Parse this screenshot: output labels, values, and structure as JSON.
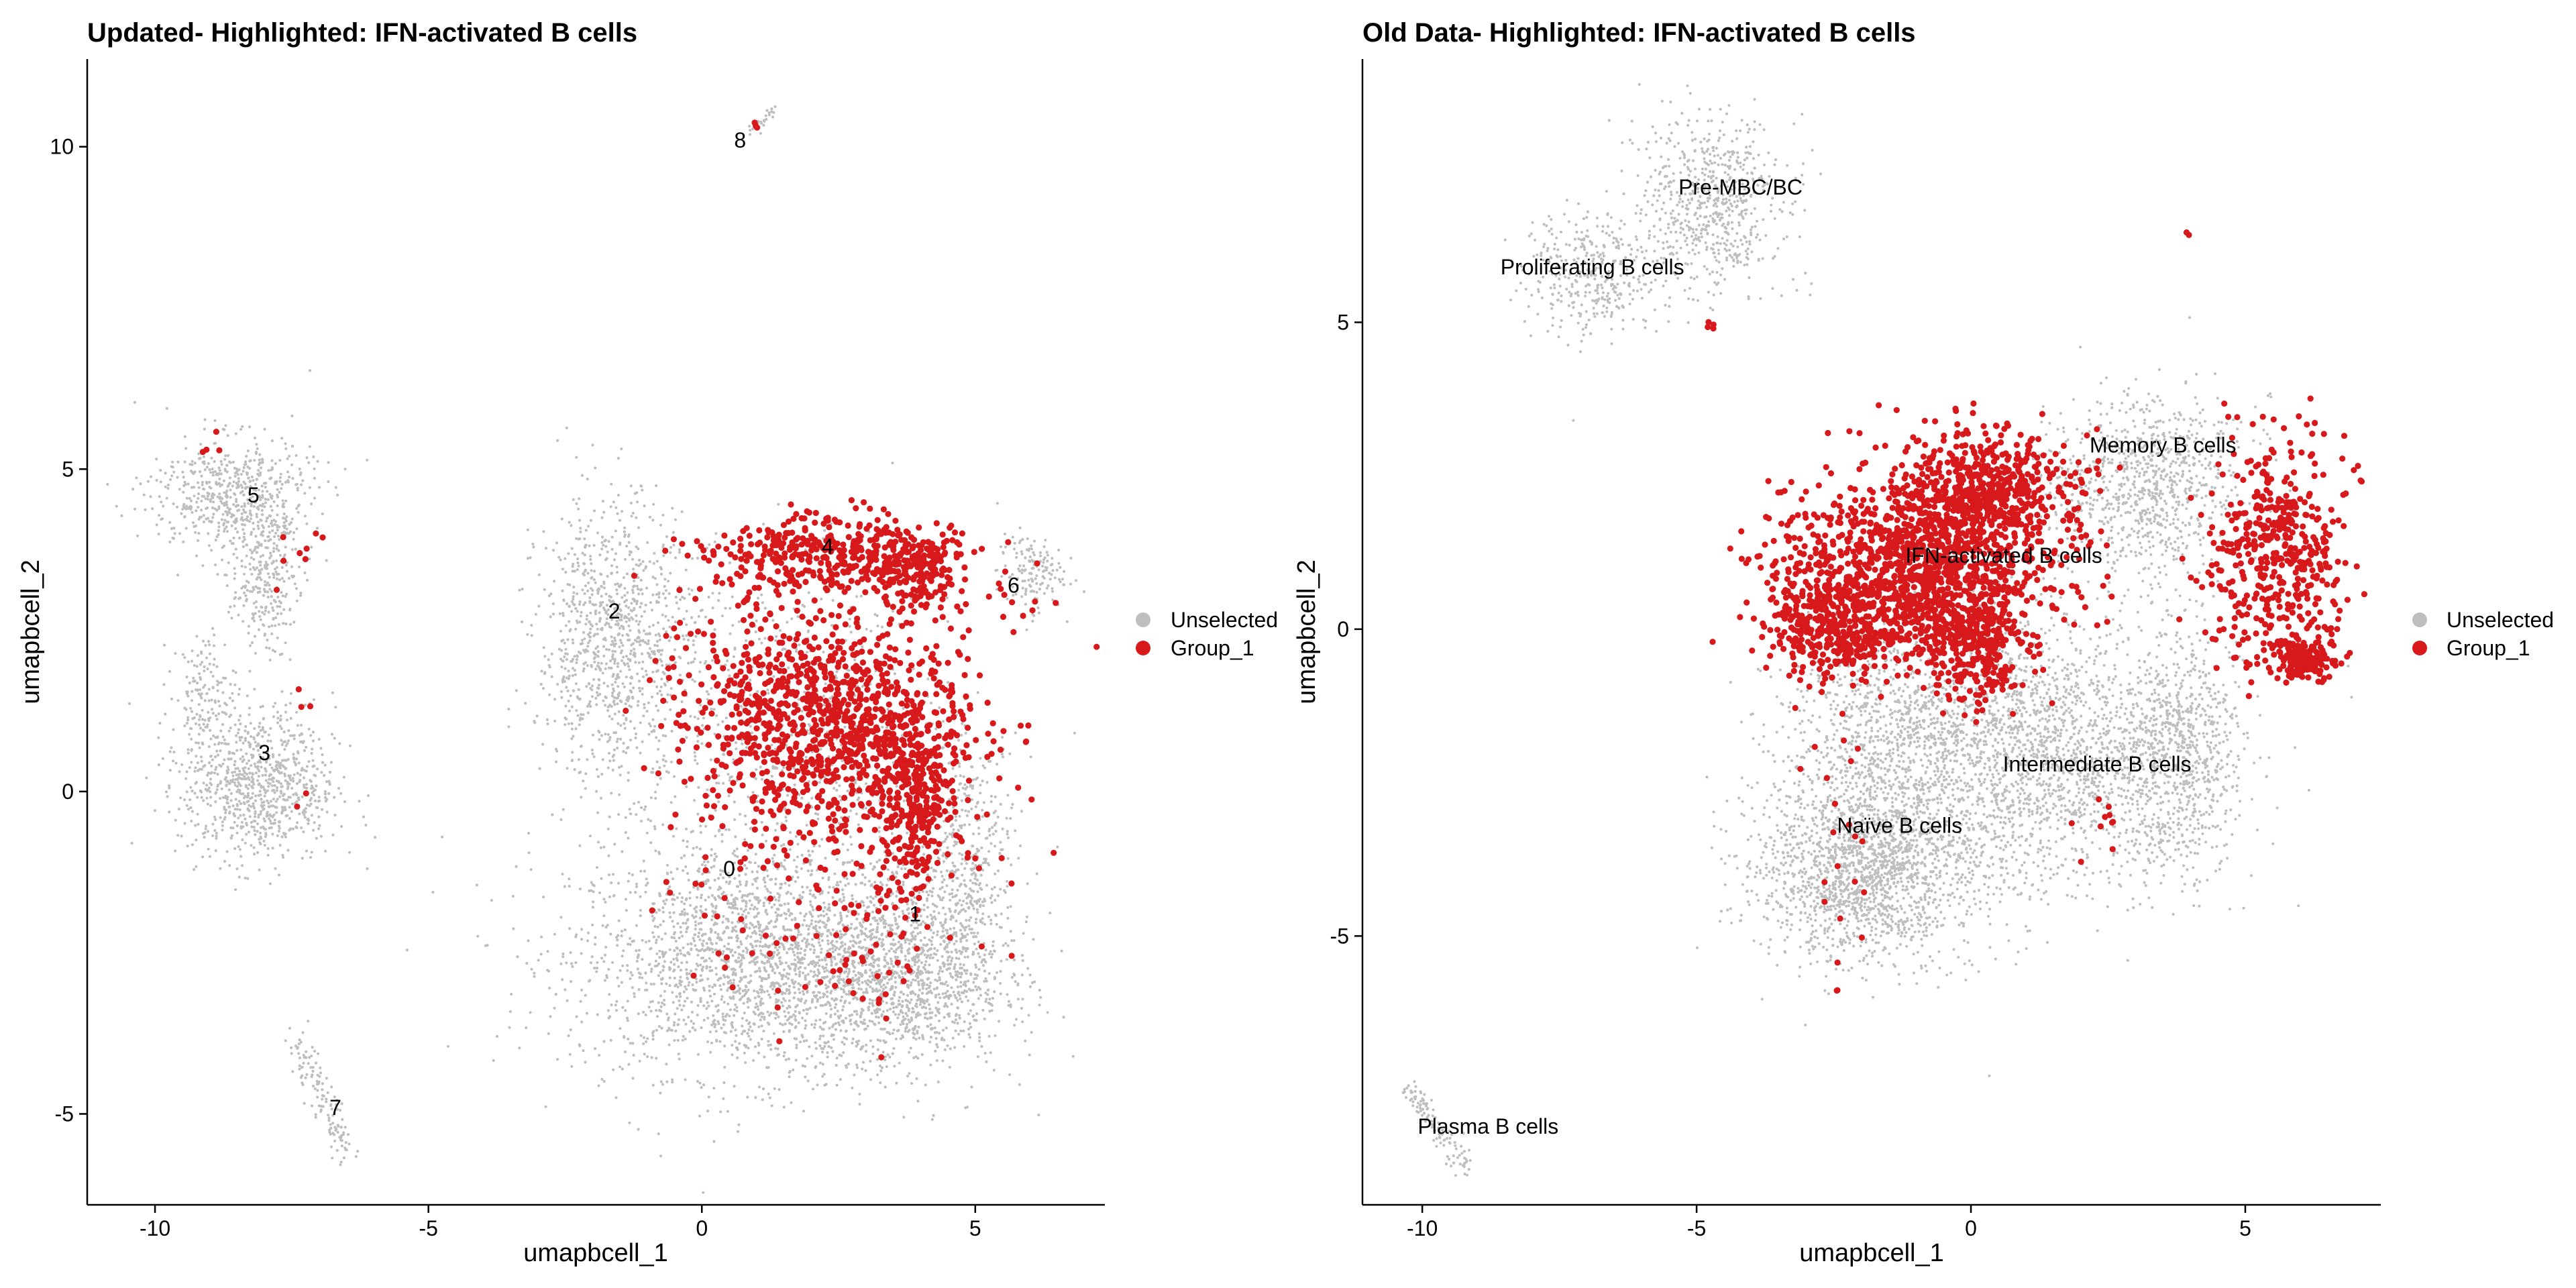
{
  "chart_data": [
    {
      "type": "scatter",
      "title": "Updated- Highlighted: IFN-activated B cells",
      "xlabel": "umapbcell_1",
      "ylabel": "umapbcell_2",
      "xlim": [
        -11.24,
        7.37
      ],
      "ylim": [
        -6.41,
        11.36
      ],
      "xticks": [
        -10,
        -5,
        0,
        5
      ],
      "yticks": [
        -5,
        0,
        5,
        10
      ],
      "xtick_labels": [
        "-10",
        "-5",
        "0",
        "5"
      ],
      "ytick_labels": [
        "-5",
        "0",
        "5",
        "10"
      ],
      "grid": false,
      "legend": {
        "placement": "right",
        "entries": [
          {
            "label": "Unselected",
            "color": "#bebebe"
          },
          {
            "label": "Group_1",
            "color": "#d7191c"
          }
        ]
      },
      "cluster_labels": [
        {
          "text": "0",
          "x": 0.5,
          "y": -1.2
        },
        {
          "text": "1",
          "x": 3.9,
          "y": -1.9
        },
        {
          "text": "2",
          "x": -1.6,
          "y": 2.8
        },
        {
          "text": "3",
          "x": -8.0,
          "y": 0.6
        },
        {
          "text": "4",
          "x": 2.3,
          "y": 3.8
        },
        {
          "text": "5",
          "x": -8.2,
          "y": 4.6
        },
        {
          "text": "6",
          "x": 5.7,
          "y": 3.2
        },
        {
          "text": "7",
          "x": -6.7,
          "y": -4.9
        },
        {
          "text": "8",
          "x": 0.7,
          "y": 10.1
        }
      ],
      "point_groups": [
        {
          "series": "Unselected",
          "shape": "gauss",
          "cx": 1.0,
          "cy": -2.6,
          "sx": 1.7,
          "sy": 0.9,
          "n": 2200
        },
        {
          "series": "Unselected",
          "shape": "gauss",
          "cx": 3.6,
          "cy": -2.9,
          "sx": 1.0,
          "sy": 0.7,
          "n": 1100
        },
        {
          "series": "Unselected",
          "shape": "gauss",
          "cx": -1.6,
          "cy": 2.3,
          "sx": 0.7,
          "sy": 1.1,
          "n": 1000
        },
        {
          "series": "Unselected",
          "shape": "gauss",
          "cx": 4.9,
          "cy": -1.2,
          "sx": 0.45,
          "sy": 1.0,
          "n": 450
        },
        {
          "series": "Unselected",
          "shape": "gauss",
          "cx": 1.8,
          "cy": 0.8,
          "sx": 1.4,
          "sy": 1.3,
          "n": 700
        },
        {
          "series": "Unselected",
          "shape": "gauss",
          "cx": -8.6,
          "cy": 4.6,
          "sx": 0.75,
          "sy": 0.45,
          "n": 550
        },
        {
          "series": "Unselected",
          "shape": "gauss",
          "cx": -8.0,
          "cy": 3.4,
          "sx": 0.3,
          "sy": 0.6,
          "n": 300
        },
        {
          "series": "Unselected",
          "shape": "gauss",
          "cx": -8.1,
          "cy": 0.1,
          "sx": 0.7,
          "sy": 0.6,
          "n": 850
        },
        {
          "series": "Unselected",
          "shape": "gauss",
          "cx": -9.1,
          "cy": 1.5,
          "sx": 0.3,
          "sy": 0.5,
          "n": 150
        },
        {
          "series": "Unselected",
          "shape": "gauss",
          "cx": 6.0,
          "cy": 3.4,
          "sx": 0.3,
          "sy": 0.3,
          "n": 150
        },
        {
          "series": "Unselected",
          "shape": "line",
          "x0": -7.4,
          "y0": -3.9,
          "x1": -6.5,
          "y1": -5.6,
          "w": 0.12,
          "n": 130
        },
        {
          "series": "Unselected",
          "shape": "line",
          "x0": 0.9,
          "y0": 10.2,
          "x1": 1.3,
          "y1": 10.6,
          "w": 0.05,
          "n": 25
        },
        {
          "series": "Group_1",
          "shape": "gauss",
          "cx": 2.3,
          "cy": 1.1,
          "sx": 1.3,
          "sy": 0.9,
          "n": 1100
        },
        {
          "series": "Group_1",
          "shape": "gauss",
          "cx": 2.4,
          "cy": 3.7,
          "sx": 1.2,
          "sy": 0.28,
          "n": 380
        },
        {
          "series": "Group_1",
          "shape": "gauss",
          "cx": 3.9,
          "cy": 3.4,
          "sx": 0.35,
          "sy": 0.3,
          "n": 150
        },
        {
          "series": "Group_1",
          "shape": "gauss",
          "cx": 3.9,
          "cy": -0.1,
          "sx": 0.4,
          "sy": 0.7,
          "n": 300
        },
        {
          "series": "Group_1",
          "shape": "gauss",
          "cx": 2.4,
          "cy": -2.0,
          "sx": 1.3,
          "sy": 0.8,
          "n": 110
        },
        {
          "series": "Group_1",
          "shape": "gauss",
          "cx": 5.7,
          "cy": 3.2,
          "sx": 0.3,
          "sy": 0.3,
          "n": 12
        },
        {
          "series": "Group_1",
          "shape": "gauss",
          "cx": -7.3,
          "cy": 3.9,
          "sx": 0.4,
          "sy": 0.5,
          "n": 8
        },
        {
          "series": "Group_1",
          "shape": "gauss",
          "cx": -8.8,
          "cy": 5.4,
          "sx": 0.3,
          "sy": 0.1,
          "n": 4
        },
        {
          "series": "Group_1",
          "shape": "gauss",
          "cx": -7.3,
          "cy": 0.8,
          "sx": 0.4,
          "sy": 0.9,
          "n": 5
        },
        {
          "series": "Group_1",
          "shape": "gauss",
          "cx": 1.0,
          "cy": 10.35,
          "sx": 0.03,
          "sy": 0.08,
          "n": 3
        }
      ]
    },
    {
      "type": "scatter",
      "title": "Old Data- Highlighted: IFN-activated B cells",
      "xlabel": "umapbcell_1",
      "ylabel": "umapbcell_2",
      "xlim": [
        -11.09,
        7.47
      ],
      "ylim": [
        -9.38,
        9.29
      ],
      "xticks": [
        -10,
        -5,
        0,
        5
      ],
      "yticks": [
        -5,
        0,
        5
      ],
      "xtick_labels": [
        "-10",
        "-5",
        "0",
        "5"
      ],
      "ytick_labels": [
        "-5",
        "0",
        "5"
      ],
      "grid": false,
      "legend": {
        "placement": "right",
        "entries": [
          {
            "label": "Unselected",
            "color": "#bebebe"
          },
          {
            "label": "Group_1",
            "color": "#d7191c"
          }
        ]
      },
      "cluster_labels": [
        {
          "text": "Pre-MBC/BC",
          "x": -4.2,
          "y": 7.2
        },
        {
          "text": "Proliferating B cells",
          "x": -6.9,
          "y": 5.9
        },
        {
          "text": "Memory B cells",
          "x": 3.5,
          "y": 3.0
        },
        {
          "text": "IFN-activated B cells",
          "x": 0.6,
          "y": 1.2
        },
        {
          "text": "Intermediate B cells",
          "x": 2.3,
          "y": -2.2
        },
        {
          "text": "Naïve B cells",
          "x": -1.3,
          "y": -3.2
        },
        {
          "text": "Plasma B cells",
          "x": -8.8,
          "y": -8.1
        }
      ],
      "point_groups": [
        {
          "series": "Unselected",
          "shape": "gauss",
          "cx": -1.9,
          "cy": -3.9,
          "sx": 1.0,
          "sy": 0.75,
          "n": 1800
        },
        {
          "series": "Unselected",
          "shape": "gauss",
          "cx": 1.2,
          "cy": -2.0,
          "sx": 1.5,
          "sy": 1.1,
          "n": 2200
        },
        {
          "series": "Unselected",
          "shape": "gauss",
          "cx": 3.8,
          "cy": -2.0,
          "sx": 0.55,
          "sy": 1.0,
          "n": 700
        },
        {
          "series": "Unselected",
          "shape": "gauss",
          "cx": 3.2,
          "cy": 2.4,
          "sx": 0.9,
          "sy": 0.7,
          "n": 900
        },
        {
          "series": "Unselected",
          "shape": "gauss",
          "cx": -1.6,
          "cy": -1.6,
          "sx": 1.0,
          "sy": 0.8,
          "n": 700
        },
        {
          "series": "Unselected",
          "shape": "gauss",
          "cx": -4.7,
          "cy": 6.9,
          "sx": 0.65,
          "sy": 0.7,
          "n": 650
        },
        {
          "series": "Unselected",
          "shape": "gauss",
          "cx": -6.9,
          "cy": 5.8,
          "sx": 0.6,
          "sy": 0.5,
          "n": 380
        },
        {
          "series": "Unselected",
          "shape": "line",
          "x0": -10.2,
          "y0": -7.5,
          "x1": -9.2,
          "y1": -8.8,
          "w": 0.1,
          "n": 110
        },
        {
          "series": "Group_1",
          "shape": "gauss",
          "cx": -1.0,
          "cy": 1.0,
          "sx": 1.2,
          "sy": 0.7,
          "n": 1300
        },
        {
          "series": "Group_1",
          "shape": "gauss",
          "cx": 0.3,
          "cy": 2.3,
          "sx": 0.8,
          "sy": 0.45,
          "n": 500
        },
        {
          "series": "Group_1",
          "shape": "gauss",
          "cx": 0.1,
          "cy": -0.3,
          "sx": 0.5,
          "sy": 0.5,
          "n": 300
        },
        {
          "series": "Group_1",
          "shape": "gauss",
          "cx": -2.5,
          "cy": 0.0,
          "sx": 0.6,
          "sy": 0.4,
          "n": 350
        },
        {
          "series": "Group_1",
          "shape": "gauss",
          "cx": 5.6,
          "cy": 1.2,
          "sx": 0.6,
          "sy": 0.9,
          "n": 480
        },
        {
          "series": "Group_1",
          "shape": "gauss",
          "cx": 6.1,
          "cy": -0.5,
          "sx": 0.3,
          "sy": 0.2,
          "n": 150
        },
        {
          "series": "Group_1",
          "shape": "gauss",
          "cx": -2.4,
          "cy": -3.5,
          "sx": 0.4,
          "sy": 0.9,
          "n": 22
        },
        {
          "series": "Group_1",
          "shape": "gauss",
          "cx": 2.3,
          "cy": -3.3,
          "sx": 0.3,
          "sy": 0.3,
          "n": 10
        },
        {
          "series": "Group_1",
          "shape": "gauss",
          "cx": -3.3,
          "cy": 2.0,
          "sx": 0.3,
          "sy": 0.5,
          "n": 10
        },
        {
          "series": "Group_1",
          "shape": "gauss",
          "cx": -4.7,
          "cy": 4.95,
          "sx": 0.1,
          "sy": 0.06,
          "n": 4
        },
        {
          "series": "Group_1",
          "shape": "gauss",
          "cx": 3.95,
          "cy": 6.3,
          "sx": 0.05,
          "sy": 0.15,
          "n": 2
        }
      ]
    }
  ]
}
